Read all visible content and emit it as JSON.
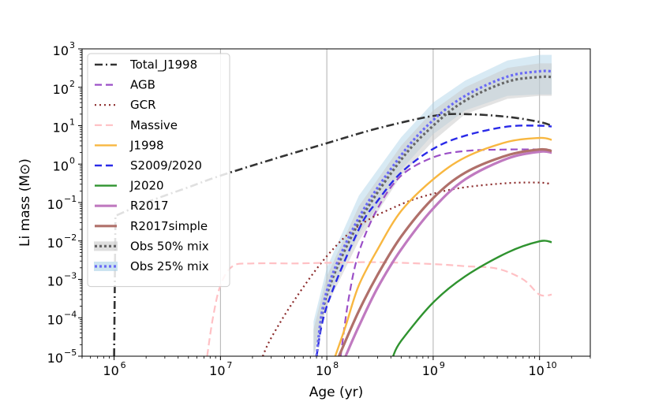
{
  "chart_data": {
    "type": "line",
    "xlabel": "Age (yr)",
    "ylabel": "Li mass (M⊙)",
    "xscale": "log",
    "yscale": "log",
    "xlim": [
      500000,
      30000000000
    ],
    "ylim": [
      1e-05,
      1000
    ],
    "xgrid_at": [
      10000000,
      100000000,
      1000000000,
      10000000000
    ],
    "grid": "vertical",
    "legend_position": "upper-left",
    "xticks": [
      {
        "base": "10",
        "exp": "6",
        "value": 1000000
      },
      {
        "base": "10",
        "exp": "7",
        "value": 10000000
      },
      {
        "base": "10",
        "exp": "8",
        "value": 100000000
      },
      {
        "base": "10",
        "exp": "9",
        "value": 1000000000
      },
      {
        "base": "10",
        "exp": "10",
        "value": 10000000000
      }
    ],
    "yticks": [
      {
        "base": "10",
        "exp": "−5",
        "value": 1e-05
      },
      {
        "base": "10",
        "exp": "−4",
        "value": 0.0001
      },
      {
        "base": "10",
        "exp": "−3",
        "value": 0.001
      },
      {
        "base": "10",
        "exp": "−2",
        "value": 0.01
      },
      {
        "base": "10",
        "exp": "−1",
        "value": 0.1
      },
      {
        "base": "10",
        "exp": "0",
        "value": 1
      },
      {
        "base": "10",
        "exp": "1",
        "value": 10
      },
      {
        "base": "10",
        "exp": "2",
        "value": 100
      },
      {
        "base": "10",
        "exp": "3",
        "value": 1000
      }
    ],
    "bands": [
      {
        "name": "Obs 25% mix",
        "color": "#a8d0e6",
        "opacity": 0.45,
        "lower": [
          [
            75000000.0,
            1e-05
          ],
          [
            100000000.0,
            0.0003
          ],
          [
            200000000.0,
            0.015
          ],
          [
            500000000.0,
            0.7
          ],
          [
            1000000000.0,
            6
          ],
          [
            2000000000.0,
            25
          ],
          [
            5000000000.0,
            60
          ],
          [
            10000000000.0,
            65
          ],
          [
            13000000000.0,
            65
          ]
        ],
        "upper": [
          [
            75000000.0,
            8e-05
          ],
          [
            100000000.0,
            0.002
          ],
          [
            200000000.0,
            0.15
          ],
          [
            500000000.0,
            5
          ],
          [
            1000000000.0,
            40
          ],
          [
            2000000000.0,
            150
          ],
          [
            5000000000.0,
            500
          ],
          [
            10000000000.0,
            700
          ],
          [
            13000000000.0,
            700
          ]
        ]
      },
      {
        "name": "Obs 50% mix",
        "color": "#c8c8c8",
        "opacity": 0.5,
        "lower": [
          [
            75000000.0,
            1e-05
          ],
          [
            100000000.0,
            0.0002
          ],
          [
            200000000.0,
            0.01
          ],
          [
            500000000.0,
            0.5
          ],
          [
            1000000000.0,
            4
          ],
          [
            2000000000.0,
            20
          ],
          [
            5000000000.0,
            50
          ],
          [
            10000000000.0,
            60
          ],
          [
            13000000000.0,
            60
          ]
        ],
        "upper": [
          [
            75000000.0,
            5e-05
          ],
          [
            100000000.0,
            0.0012
          ],
          [
            200000000.0,
            0.08
          ],
          [
            500000000.0,
            3
          ],
          [
            1000000000.0,
            25
          ],
          [
            2000000000.0,
            100
          ],
          [
            5000000000.0,
            320
          ],
          [
            10000000000.0,
            420
          ],
          [
            13000000000.0,
            420
          ]
        ]
      }
    ],
    "series": [
      {
        "name": "Total_J1998",
        "color": "#333333",
        "dash": "10,4,2,4",
        "width": 2.6,
        "points": [
          [
            1000000.0,
            1e-05
          ],
          [
            1030000.0,
            0.045
          ],
          [
            2000000.0,
            0.1
          ],
          [
            5000000.0,
            0.25
          ],
          [
            10000000.0,
            0.5
          ],
          [
            30000000.0,
            1.3
          ],
          [
            100000000.0,
            3.5
          ],
          [
            300000000.0,
            8.5
          ],
          [
            1000000000.0,
            18
          ],
          [
            2000000000.0,
            20
          ],
          [
            5000000000.0,
            17
          ],
          [
            10000000000.0,
            12.5
          ],
          [
            13000000000.0,
            10
          ]
        ]
      },
      {
        "name": "AGB",
        "color": "#9b4fc7",
        "dash": "9,5",
        "width": 2.2,
        "points": [
          [
            135000000.0,
            1e-05
          ],
          [
            160000000.0,
            0.0003
          ],
          [
            200000000.0,
            0.005
          ],
          [
            300000000.0,
            0.07
          ],
          [
            500000000.0,
            0.5
          ],
          [
            1000000000.0,
            1.5
          ],
          [
            2000000000.0,
            2.2
          ],
          [
            5000000000.0,
            2.4
          ],
          [
            10000000000.0,
            2.4
          ],
          [
            13000000000.0,
            2.3
          ]
        ]
      },
      {
        "name": "GCR",
        "color": "#8b2a2a",
        "dash": "2,4",
        "width": 2.2,
        "points": [
          [
            25000000.0,
            1e-05
          ],
          [
            30000000.0,
            3e-05
          ],
          [
            50000000.0,
            0.0003
          ],
          [
            100000000.0,
            0.004
          ],
          [
            200000000.0,
            0.025
          ],
          [
            500000000.0,
            0.09
          ],
          [
            1000000000.0,
            0.17
          ],
          [
            2000000000.0,
            0.25
          ],
          [
            5000000000.0,
            0.32
          ],
          [
            10000000000.0,
            0.33
          ],
          [
            13000000000.0,
            0.3
          ]
        ]
      },
      {
        "name": "Massive",
        "color": "#ffc0c4",
        "dash": "9,5",
        "width": 2.2,
        "points": [
          [
            7500000.0,
            1e-05
          ],
          [
            8500000.0,
            0.0001
          ],
          [
            10000000.0,
            0.0007
          ],
          [
            13000000.0,
            0.0022
          ],
          [
            20000000.0,
            0.0026
          ],
          [
            50000000.0,
            0.0026
          ],
          [
            100000000.0,
            0.0027
          ],
          [
            300000000.0,
            0.0028
          ],
          [
            1000000000.0,
            0.0025
          ],
          [
            2000000000.0,
            0.0022
          ],
          [
            4000000000.0,
            0.0019
          ],
          [
            7000000000.0,
            0.001
          ],
          [
            10000000000.0,
            0.0004
          ],
          [
            13000000000.0,
            0.0004
          ]
        ]
      },
      {
        "name": "J1998",
        "color": "#f8b740",
        "dash": "",
        "width": 2.4,
        "points": [
          [
            120000000.0,
            1e-05
          ],
          [
            150000000.0,
            6e-05
          ],
          [
            200000000.0,
            0.0007
          ],
          [
            300000000.0,
            0.006
          ],
          [
            500000000.0,
            0.06
          ],
          [
            1000000000.0,
            0.4
          ],
          [
            2000000000.0,
            1.5
          ],
          [
            5000000000.0,
            3.8
          ],
          [
            10000000000.0,
            4.8
          ],
          [
            13000000000.0,
            4.3
          ]
        ]
      },
      {
        "name": "S2009/2020",
        "color": "#2a2ae8",
        "dash": "9,5",
        "width": 2.4,
        "points": [
          [
            80000000.0,
            1e-05
          ],
          [
            100000000.0,
            0.0002
          ],
          [
            200000000.0,
            0.02
          ],
          [
            300000000.0,
            0.11
          ],
          [
            500000000.0,
            0.6
          ],
          [
            1000000000.0,
            2.5
          ],
          [
            2000000000.0,
            5.5
          ],
          [
            5000000000.0,
            9.5
          ],
          [
            10000000000.0,
            10
          ],
          [
            13000000000.0,
            9.5
          ]
        ]
      },
      {
        "name": "J2020",
        "color": "#2f932f",
        "dash": "",
        "width": 2.4,
        "points": [
          [
            420000000.0,
            1e-05
          ],
          [
            500000000.0,
            2.5e-05
          ],
          [
            1000000000.0,
            0.00025
          ],
          [
            2000000000.0,
            0.0012
          ],
          [
            5000000000.0,
            0.005
          ],
          [
            10000000000.0,
            0.0098
          ],
          [
            13000000000.0,
            0.0093
          ]
        ]
      },
      {
        "name": "R2017",
        "color": "#c07ac0",
        "dash": "",
        "width": 3.2,
        "points": [
          [
            150000000.0,
            1e-05
          ],
          [
            200000000.0,
            6e-05
          ],
          [
            300000000.0,
            0.0006
          ],
          [
            500000000.0,
            0.006
          ],
          [
            1000000000.0,
            0.07
          ],
          [
            2000000000.0,
            0.4
          ],
          [
            5000000000.0,
            1.4
          ],
          [
            10000000000.0,
            2.1
          ],
          [
            13000000000.0,
            2
          ]
        ]
      },
      {
        "name": "R2017simple",
        "color": "#b0706a",
        "dash": "",
        "width": 3.2,
        "points": [
          [
            130000000.0,
            1e-05
          ],
          [
            200000000.0,
            0.00015
          ],
          [
            300000000.0,
            0.0013
          ],
          [
            500000000.0,
            0.013
          ],
          [
            1000000000.0,
            0.13
          ],
          [
            2000000000.0,
            0.6
          ],
          [
            5000000000.0,
            1.7
          ],
          [
            10000000000.0,
            2.4
          ],
          [
            13000000000.0,
            2.2
          ]
        ]
      },
      {
        "name": "Obs 50% mix",
        "color": "#666666",
        "dash": "3,3",
        "width": 3.2,
        "points": [
          [
            80000000.0,
            1e-05
          ],
          [
            100000000.0,
            0.0004
          ],
          [
            200000000.0,
            0.03
          ],
          [
            500000000.0,
            1.3
          ],
          [
            1000000000.0,
            10
          ],
          [
            2000000000.0,
            45
          ],
          [
            5000000000.0,
            140
          ],
          [
            10000000000.0,
            185
          ],
          [
            13000000000.0,
            185
          ]
        ]
      },
      {
        "name": "Obs 25% mix",
        "color": "#6a6af5",
        "dash": "3,3",
        "width": 3.2,
        "points": [
          [
            80000000.0,
            1e-05
          ],
          [
            100000000.0,
            0.0005
          ],
          [
            200000000.0,
            0.04
          ],
          [
            500000000.0,
            1.7
          ],
          [
            1000000000.0,
            14
          ],
          [
            2000000000.0,
            60
          ],
          [
            5000000000.0,
            190
          ],
          [
            10000000000.0,
            260
          ],
          [
            13000000000.0,
            260
          ]
        ]
      }
    ],
    "legend": [
      {
        "label": "Total_J1998",
        "type": "line",
        "color": "#333333",
        "dash": "10,4,2,4",
        "width": 2.6
      },
      {
        "label": "AGB",
        "type": "line",
        "color": "#9b4fc7",
        "dash": "9,5",
        "width": 2.2
      },
      {
        "label": "GCR",
        "type": "line",
        "color": "#8b2a2a",
        "dash": "2,4",
        "width": 2.2
      },
      {
        "label": "Massive",
        "type": "line",
        "color": "#ffc0c4",
        "dash": "9,5",
        "width": 2.2
      },
      {
        "label": "J1998",
        "type": "line",
        "color": "#f8b740",
        "dash": "",
        "width": 2.4
      },
      {
        "label": "S2009/2020",
        "type": "line",
        "color": "#2a2ae8",
        "dash": "9,5",
        "width": 2.4
      },
      {
        "label": "J2020",
        "type": "line",
        "color": "#2f932f",
        "dash": "",
        "width": 2.4
      },
      {
        "label": "R2017",
        "type": "line",
        "color": "#c07ac0",
        "dash": "",
        "width": 3.2
      },
      {
        "label": "R2017simple",
        "type": "line",
        "color": "#b0706a",
        "dash": "",
        "width": 3.2
      },
      {
        "label": "Obs 50% mix",
        "type": "band",
        "color": "#666666",
        "fill": "#c8c8c8",
        "dash": "3,3",
        "width": 3.2
      },
      {
        "label": "Obs 25% mix",
        "type": "band",
        "color": "#6a6af5",
        "fill": "#a8d0e6",
        "dash": "3,3",
        "width": 3.2
      }
    ]
  }
}
